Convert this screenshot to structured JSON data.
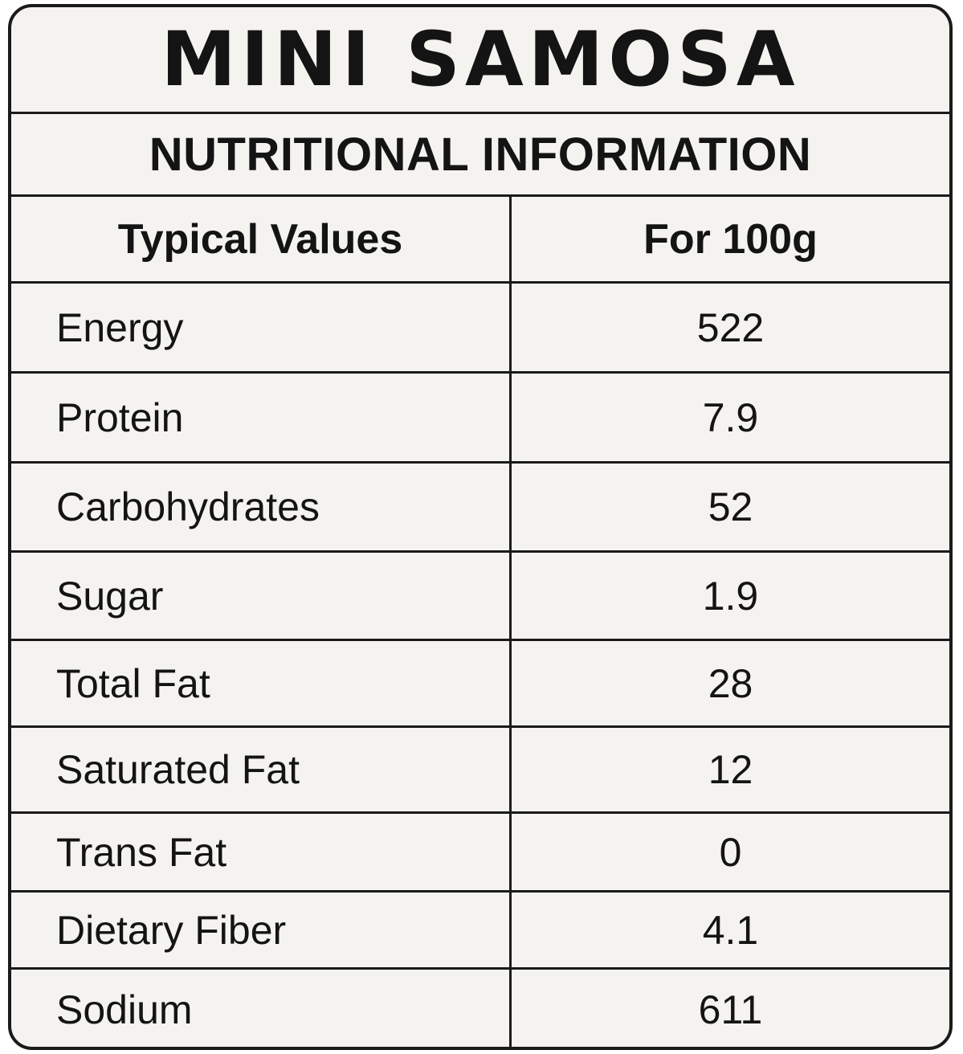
{
  "label": {
    "product_name": "MINI SAMOSA",
    "section_title": "NUTRITIONAL INFORMATION",
    "table": {
      "headers": {
        "nutrient": "Typical Values",
        "per_amount": "For 100g"
      },
      "rows": [
        {
          "nutrient": "Energy",
          "value": "522"
        },
        {
          "nutrient": "Protein",
          "value": "7.9"
        },
        {
          "nutrient": "Carbohydrates",
          "value": "52"
        },
        {
          "nutrient": "Sugar",
          "value": "1.9"
        },
        {
          "nutrient": "Total Fat",
          "value": "28"
        },
        {
          "nutrient": "Saturated Fat",
          "value": "12"
        },
        {
          "nutrient": "Trans Fat",
          "value": "0"
        },
        {
          "nutrient": "Dietary Fiber",
          "value": "4.1"
        },
        {
          "nutrient": "Sodium",
          "value": "611"
        }
      ]
    }
  }
}
